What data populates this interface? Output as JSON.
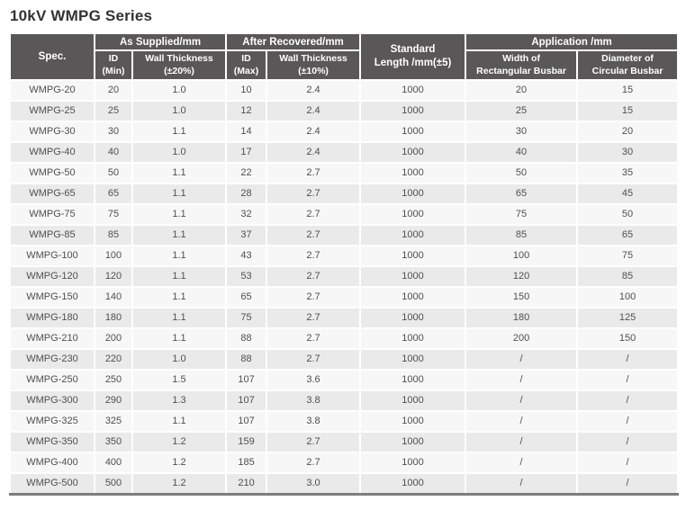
{
  "page": {
    "title": "10kV WMPG Series"
  },
  "table": {
    "header": {
      "spec": "Spec.",
      "as_supplied_group": "As Supplied/mm",
      "after_recovered_group": "After Recovered/mm",
      "standard_length": "Standard\nLength /mm(±5)",
      "application_group": "Application /mm",
      "id_min": "ID\n(Min)",
      "wall_thickness_20": "Wall Thickness\n(±20%)",
      "id_max": "ID\n(Max)",
      "wall_thickness_10": "Wall Thickness\n(±10%)",
      "width_rect_busbar": "Width of\nRectangular Busbar",
      "dia_circ_busbar": "Diameter of\nCircular Busbar"
    },
    "column_keys": [
      "spec",
      "id-min-supplied",
      "wall-thickness-supplied",
      "id-max-recovered",
      "wall-thickness-recovered",
      "standard-length",
      "width-rectangular-busbar",
      "diameter-circular-busbar"
    ],
    "rows": [
      [
        "WMPG-20",
        "20",
        "1.0",
        "10",
        "2.4",
        "1000",
        "20",
        "15"
      ],
      [
        "WMPG-25",
        "25",
        "1.0",
        "12",
        "2.4",
        "1000",
        "25",
        "15"
      ],
      [
        "WMPG-30",
        "30",
        "1.1",
        "14",
        "2.4",
        "1000",
        "30",
        "20"
      ],
      [
        "WMPG-40",
        "40",
        "1.0",
        "17",
        "2.4",
        "1000",
        "40",
        "30"
      ],
      [
        "WMPG-50",
        "50",
        "1.1",
        "22",
        "2.7",
        "1000",
        "50",
        "35"
      ],
      [
        "WMPG-65",
        "65",
        "1.1",
        "28",
        "2.7",
        "1000",
        "65",
        "45"
      ],
      [
        "WMPG-75",
        "75",
        "1.1",
        "32",
        "2.7",
        "1000",
        "75",
        "50"
      ],
      [
        "WMPG-85",
        "85",
        "1.1",
        "37",
        "2.7",
        "1000",
        "85",
        "65"
      ],
      [
        "WMPG-100",
        "100",
        "1.1",
        "43",
        "2.7",
        "1000",
        "100",
        "75"
      ],
      [
        "WMPG-120",
        "120",
        "1.1",
        "53",
        "2.7",
        "1000",
        "120",
        "85"
      ],
      [
        "WMPG-150",
        "140",
        "1.1",
        "65",
        "2.7",
        "1000",
        "150",
        "100"
      ],
      [
        "WMPG-180",
        "180",
        "1.1",
        "75",
        "2.7",
        "1000",
        "180",
        "125"
      ],
      [
        "WMPG-210",
        "200",
        "1.1",
        "88",
        "2.7",
        "1000",
        "200",
        "150"
      ],
      [
        "WMPG-230",
        "220",
        "1.0",
        "88",
        "2.7",
        "1000",
        "/",
        "/"
      ],
      [
        "WMPG-250",
        "250",
        "1.5",
        "107",
        "3.6",
        "1000",
        "/",
        "/"
      ],
      [
        "WMPG-300",
        "290",
        "1.3",
        "107",
        "3.8",
        "1000",
        "/",
        "/"
      ],
      [
        "WMPG-325",
        "325",
        "1.1",
        "107",
        "3.8",
        "1000",
        "/",
        "/"
      ],
      [
        "WMPG-350",
        "350",
        "1.2",
        "159",
        "2.7",
        "1000",
        "/",
        "/"
      ],
      [
        "WMPG-400",
        "400",
        "1.2",
        "185",
        "2.7",
        "1000",
        "/",
        "/"
      ],
      [
        "WMPG-500",
        "500",
        "1.2",
        "210",
        "3.0",
        "1000",
        "/",
        "/"
      ]
    ]
  },
  "colors": {
    "header_bg": "#595757",
    "header_text": "#ffffff",
    "row_odd_bg": "#f7f7f7",
    "row_even_bg": "#eaeaea",
    "cell_text": "#4f4f4f",
    "title_text": "#333333",
    "table_bottom_border": "#7d7d7d"
  }
}
